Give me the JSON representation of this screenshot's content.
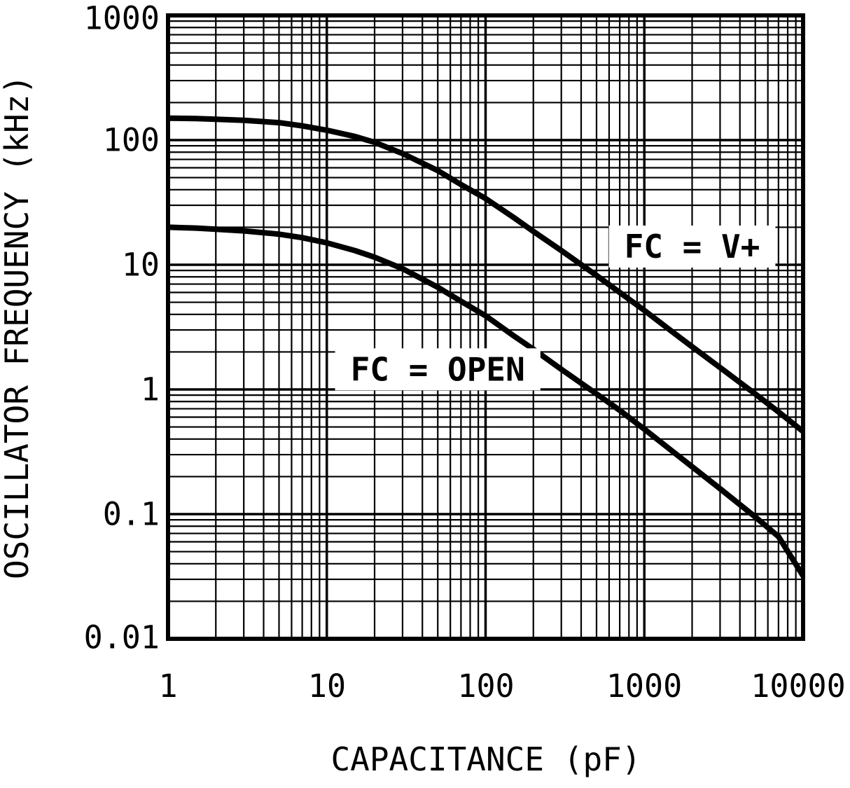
{
  "chart_data": {
    "type": "line",
    "title": "",
    "xlabel": "CAPACITANCE (pF)",
    "ylabel": "OSCILLATOR FREQUENCY (kHz)",
    "xscale": "log",
    "yscale": "log",
    "xlim": [
      1,
      10000
    ],
    "ylim": [
      0.01,
      1000
    ],
    "x_ticks": [
      "1",
      "10",
      "100",
      "1000",
      "10000"
    ],
    "y_ticks": [
      "1000",
      "100",
      "10",
      "1",
      "0.1",
      "0.01"
    ],
    "grid": "full log minor grid, black on white",
    "legend_position": "inline annotations",
    "colors": {
      "line": "#000000",
      "background": "#ffffff",
      "grid": "#000000"
    },
    "series": [
      {
        "name": "FC = V+",
        "points": [
          [
            1,
            150
          ],
          [
            1.5,
            149
          ],
          [
            2,
            147
          ],
          [
            3,
            144
          ],
          [
            5,
            138
          ],
          [
            7,
            130
          ],
          [
            10,
            120
          ],
          [
            15,
            107
          ],
          [
            20,
            96
          ],
          [
            30,
            78
          ],
          [
            50,
            57
          ],
          [
            70,
            44
          ],
          [
            100,
            34
          ],
          [
            150,
            24
          ],
          [
            200,
            18.5
          ],
          [
            300,
            13
          ],
          [
            500,
            8.2
          ],
          [
            700,
            6.0
          ],
          [
            1000,
            4.3
          ],
          [
            1500,
            2.9
          ],
          [
            2000,
            2.2
          ],
          [
            3000,
            1.5
          ],
          [
            5000,
            0.92
          ],
          [
            7000,
            0.66
          ],
          [
            10000,
            0.46
          ]
        ]
      },
      {
        "name": "FC = OPEN",
        "points": [
          [
            1,
            20
          ],
          [
            1.5,
            19.7
          ],
          [
            2,
            19.3
          ],
          [
            3,
            18.7
          ],
          [
            5,
            17.6
          ],
          [
            7,
            16.5
          ],
          [
            10,
            15
          ],
          [
            15,
            13
          ],
          [
            20,
            11.5
          ],
          [
            30,
            9.3
          ],
          [
            50,
            6.6
          ],
          [
            70,
            5.1
          ],
          [
            100,
            3.9
          ],
          [
            150,
            2.7
          ],
          [
            200,
            2.1
          ],
          [
            300,
            1.45
          ],
          [
            500,
            0.92
          ],
          [
            700,
            0.68
          ],
          [
            1000,
            0.48
          ],
          [
            1500,
            0.32
          ],
          [
            2000,
            0.24
          ],
          [
            3000,
            0.16
          ],
          [
            5000,
            0.095
          ],
          [
            7000,
            0.066
          ],
          [
            10000,
            0.032
          ]
        ]
      }
    ],
    "annotations": [
      {
        "text": "FC = V+",
        "x": 2000,
        "y": 14
      },
      {
        "text": "FC = OPEN",
        "x": 50,
        "y": 1.45
      }
    ]
  }
}
